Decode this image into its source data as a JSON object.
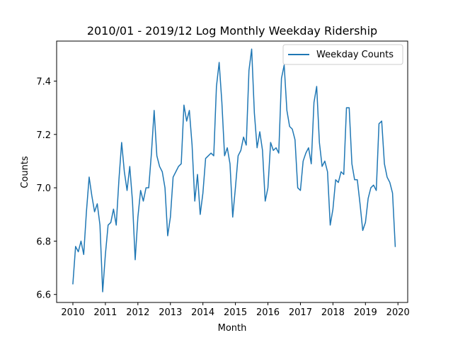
{
  "chart_data": {
    "type": "line",
    "title": "2010/01 - 2019/12 Log Monthly Weekday Ridership",
    "xlabel": "Month",
    "ylabel": "Counts",
    "xlim": [
      2009.5,
      2020.3
    ],
    "ylim": [
      6.57,
      7.55
    ],
    "x_ticks": [
      2010,
      2011,
      2012,
      2013,
      2014,
      2015,
      2016,
      2017,
      2018,
      2019,
      2020
    ],
    "x_tick_labels": [
      "2010",
      "2011",
      "2012",
      "2013",
      "2014",
      "2015",
      "2016",
      "2017",
      "2018",
      "2019",
      "2020"
    ],
    "y_ticks": [
      6.6,
      6.8,
      7.0,
      7.2,
      7.4
    ],
    "y_tick_labels": [
      "6.6",
      "6.8",
      "7.0",
      "7.2",
      "7.4"
    ],
    "grid": false,
    "legend_position": "top-right",
    "series": [
      {
        "name": "Weekday Counts",
        "color": "#1f77b4",
        "x_start": 2010,
        "x_step": 0.08333,
        "values": [
          6.64,
          6.78,
          6.76,
          6.8,
          6.75,
          6.91,
          7.04,
          6.97,
          6.91,
          6.94,
          6.86,
          6.61,
          6.75,
          6.86,
          6.87,
          6.92,
          6.86,
          7.03,
          7.17,
          7.06,
          6.99,
          7.08,
          6.95,
          6.73,
          6.89,
          6.99,
          6.95,
          7.0,
          7.0,
          7.13,
          7.29,
          7.12,
          7.08,
          7.06,
          7.0,
          6.82,
          6.89,
          7.04,
          7.06,
          7.08,
          7.09,
          7.31,
          7.25,
          7.29,
          7.16,
          6.95,
          7.05,
          6.9,
          6.98,
          7.11,
          7.12,
          7.13,
          7.12,
          7.38,
          7.47,
          7.32,
          7.12,
          7.15,
          7.09,
          6.89,
          7.0,
          7.12,
          7.14,
          7.19,
          7.16,
          7.44,
          7.52,
          7.28,
          7.15,
          7.21,
          7.14,
          6.95,
          7.0,
          7.17,
          7.14,
          7.15,
          7.13,
          7.41,
          7.46,
          7.29,
          7.23,
          7.22,
          7.18,
          7.0,
          6.99,
          7.1,
          7.13,
          7.15,
          7.09,
          7.32,
          7.38,
          7.17,
          7.08,
          7.1,
          7.06,
          6.86,
          6.92,
          7.03,
          7.02,
          7.06,
          7.05,
          7.3,
          7.3,
          7.09,
          7.03,
          7.03,
          6.94,
          6.84,
          6.87,
          6.96,
          7.0,
          7.01,
          6.99,
          7.24,
          7.25,
          7.09,
          7.04,
          7.02,
          6.98,
          6.78
        ]
      }
    ]
  }
}
